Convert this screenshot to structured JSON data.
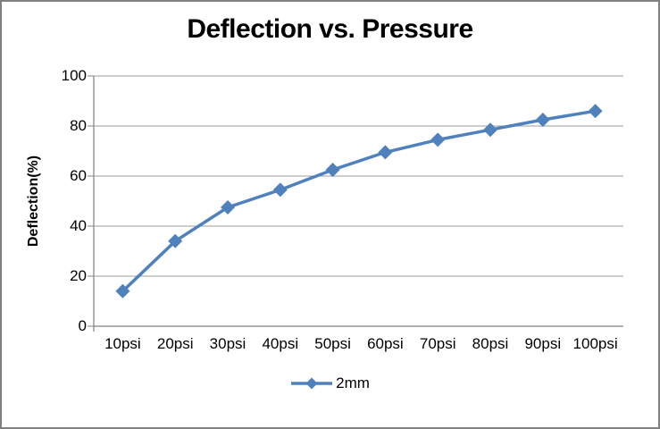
{
  "window": {
    "background": "#ffffff",
    "border_color": "#808080"
  },
  "chart_data": {
    "type": "line",
    "title": "Deflection vs. Pressure",
    "xlabel": "",
    "ylabel": "Deflection(%)",
    "categories": [
      "10psi",
      "20psi",
      "30psi",
      "40psi",
      "50psi",
      "60psi",
      "70psi",
      "80psi",
      "90psi",
      "100psi"
    ],
    "series": [
      {
        "name": "2mm",
        "color": "#4F81BD",
        "marker": "diamond",
        "values": [
          14,
          34,
          47.5,
          54.5,
          62.5,
          69.5,
          74.5,
          78.5,
          82.5,
          86
        ]
      }
    ],
    "ylim": [
      0,
      100
    ],
    "yticks": [
      0,
      20,
      40,
      60,
      80,
      100
    ],
    "grid": true,
    "legend_position": "bottom",
    "axis_color": "#808080",
    "gridline_color": "#9c9c9c",
    "text_color": "#000000"
  }
}
